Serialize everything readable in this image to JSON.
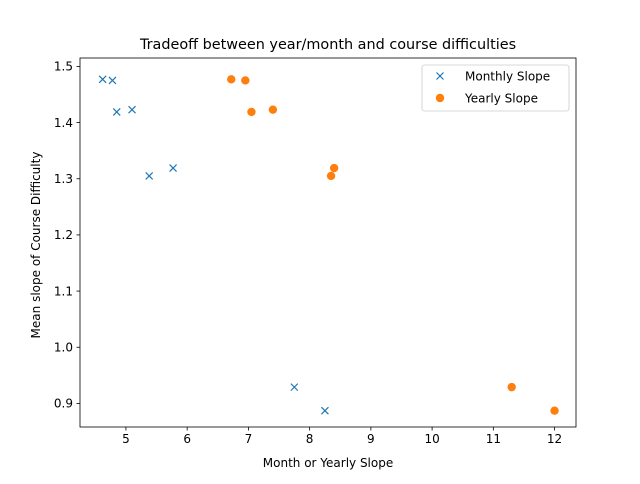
{
  "chart_data": {
    "type": "scatter",
    "title": "Tradeoff between year/month and course difficulties",
    "xlabel": "Month or Yearly Slope",
    "ylabel": "Mean slope of Course Difficulty",
    "xlim": [
      4.25,
      12.35
    ],
    "ylim": [
      0.858,
      1.515
    ],
    "xticks": [
      5,
      6,
      7,
      8,
      9,
      10,
      11,
      12
    ],
    "xtick_labels": [
      "5",
      "6",
      "7",
      "8",
      "9",
      "10",
      "11",
      "12"
    ],
    "yticks": [
      0.9,
      1.0,
      1.1,
      1.2,
      1.3,
      1.4,
      1.5
    ],
    "ytick_labels": [
      "0.9",
      "1.0",
      "1.1",
      "1.2",
      "1.3",
      "1.4",
      "1.5"
    ],
    "grid": false,
    "legend_position": "top-right",
    "series": [
      {
        "name": "Monthly Slope",
        "marker": "x",
        "color": "#1f77b4",
        "points": [
          [
            4.62,
            1.477
          ],
          [
            4.78,
            1.475
          ],
          [
            4.85,
            1.419
          ],
          [
            5.1,
            1.423
          ],
          [
            5.38,
            1.305
          ],
          [
            5.77,
            1.319
          ],
          [
            7.75,
            0.929
          ],
          [
            8.25,
            0.887
          ]
        ]
      },
      {
        "name": "Yearly Slope",
        "marker": "circle",
        "color": "#ff7f0e",
        "points": [
          [
            6.72,
            1.477
          ],
          [
            6.95,
            1.475
          ],
          [
            7.05,
            1.419
          ],
          [
            7.4,
            1.423
          ],
          [
            8.35,
            1.305
          ],
          [
            8.4,
            1.319
          ],
          [
            11.3,
            0.929
          ],
          [
            12.0,
            0.887
          ]
        ]
      }
    ]
  }
}
